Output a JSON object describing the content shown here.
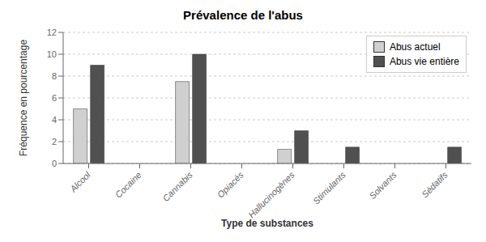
{
  "chart_data": {
    "type": "bar",
    "title": "Prévalence de l'abus",
    "xlabel": "Type de substances",
    "ylabel": "Fréquence en pourcentage",
    "categories": [
      "Alcool",
      "Cocaine",
      "Cannabis",
      "Opiacés",
      "Hallucinogènes",
      "Stimulants",
      "Solvants",
      "Sédatifs"
    ],
    "series": [
      {
        "name": "Abus actuel",
        "color": "#d0d0d0",
        "values": [
          5.0,
          0,
          7.5,
          0,
          1.3,
          0,
          0,
          0
        ]
      },
      {
        "name": "Abus vie entière",
        "color": "#505050",
        "values": [
          9.0,
          0,
          10.0,
          0,
          3.0,
          1.5,
          0,
          1.5
        ]
      }
    ],
    "ylim": [
      0,
      12
    ],
    "yticks": [
      0,
      2,
      4,
      6,
      8,
      10,
      12
    ],
    "grid": true,
    "legend": "upper right"
  }
}
